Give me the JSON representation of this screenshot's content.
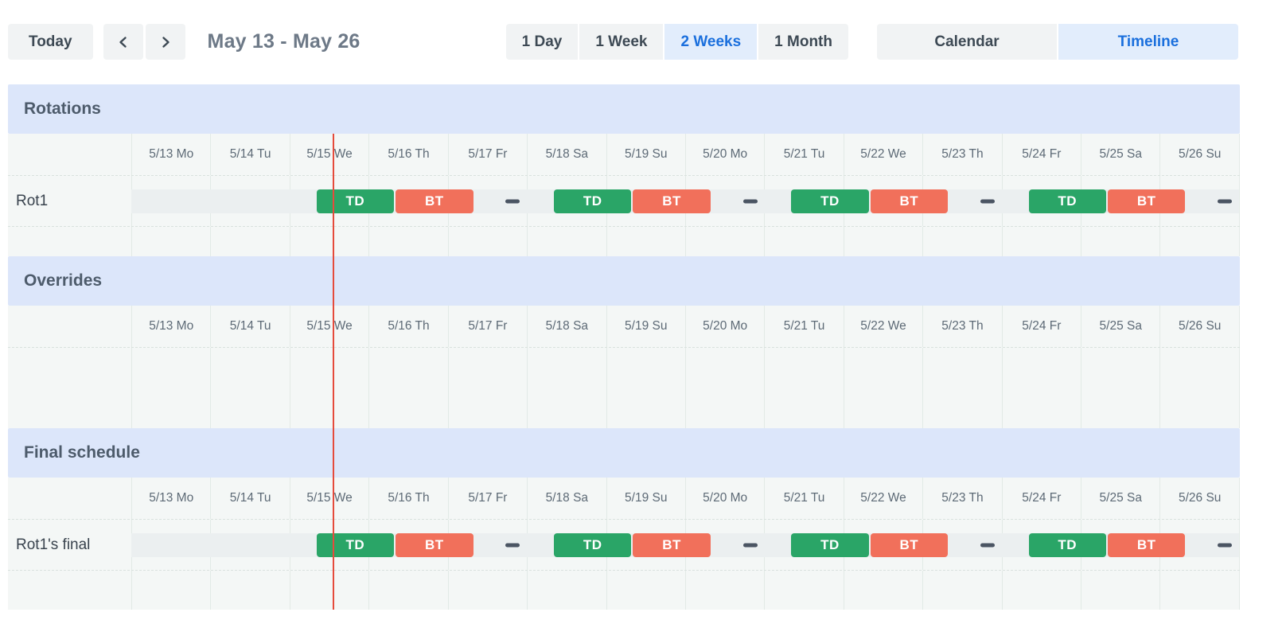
{
  "toolbar": {
    "today": "Today",
    "prev_icon": "chevron-left",
    "next_icon": "chevron-right",
    "date_range": "May 13 - May 26",
    "zoom_options": [
      {
        "label": "1 Day",
        "active": false
      },
      {
        "label": "1 Week",
        "active": false
      },
      {
        "label": "2 Weeks",
        "active": true
      },
      {
        "label": "1 Month",
        "active": false
      }
    ],
    "view_options": [
      {
        "label": "Calendar",
        "active": false
      },
      {
        "label": "Timeline",
        "active": true
      }
    ]
  },
  "timeline": {
    "dates": [
      "5/13 Mo",
      "5/14 Tu",
      "5/15 We",
      "5/16 Th",
      "5/17 Fr",
      "5/18 Sa",
      "5/19 Su",
      "5/20 Mo",
      "5/21 Tu",
      "5/22 We",
      "5/23 Th",
      "5/24 Fr",
      "5/25 Sa",
      "5/26 Su"
    ],
    "days_shown": 14,
    "now_day": 2.54,
    "shift_pattern": [
      {
        "kind": "shift",
        "label": "TD",
        "start": 2.33,
        "end": 3.33
      },
      {
        "kind": "shift",
        "label": "BT",
        "start": 3.33,
        "end": 4.33
      },
      {
        "kind": "gap",
        "at": 4.82
      },
      {
        "kind": "shift",
        "label": "TD",
        "start": 5.33,
        "end": 6.33
      },
      {
        "kind": "shift",
        "label": "BT",
        "start": 6.33,
        "end": 7.33
      },
      {
        "kind": "gap",
        "at": 7.82
      },
      {
        "kind": "shift",
        "label": "TD",
        "start": 8.33,
        "end": 9.33
      },
      {
        "kind": "shift",
        "label": "BT",
        "start": 9.33,
        "end": 10.33
      },
      {
        "kind": "gap",
        "at": 10.82
      },
      {
        "kind": "shift",
        "label": "TD",
        "start": 11.33,
        "end": 12.33
      },
      {
        "kind": "shift",
        "label": "BT",
        "start": 12.33,
        "end": 13.33
      },
      {
        "kind": "gap",
        "at": 13.82
      }
    ],
    "sections": [
      {
        "title": "Rotations",
        "rows": [
          {
            "label": "Rot1",
            "events": "shift_pattern"
          },
          {
            "label": "",
            "size": "sm"
          }
        ]
      },
      {
        "title": "Overrides",
        "rows": [
          {
            "label": "",
            "size": "lg"
          }
        ]
      },
      {
        "title": "Final schedule",
        "rows": [
          {
            "label": "Rot1's final",
            "events": "shift_pattern"
          },
          {
            "label": "",
            "size": "md"
          }
        ]
      }
    ]
  },
  "colors": {
    "shift_td": "#2aa567",
    "shift_bt": "#f1705b",
    "gap_dash": "#4b5563",
    "now_line": "#e54b3c",
    "active_blue": "#1a6fdd",
    "active_blue_bg": "#e2edfc",
    "section_band": "#dce6fa"
  }
}
